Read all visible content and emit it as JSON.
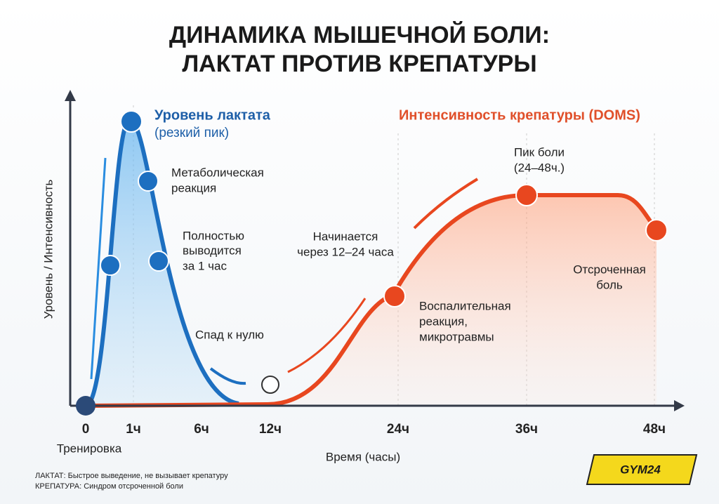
{
  "header": {
    "title": [
      "ДИНАМИКА МЫШЕЧНОЙ БОЛИ:",
      "ЛАКТАТ ПРОТИВ КРЕПАТУРЫ"
    ]
  },
  "axes": {
    "y_label": "Уровень / Интенсивность",
    "x_label": "Время (часы)",
    "x_ticks": [
      "0",
      "1ч",
      "6ч",
      "12ч",
      "24ч",
      "36ч",
      "48ч"
    ],
    "origin_note": "Тренировка"
  },
  "lactate": {
    "title": "Уровень лактата",
    "subtitle": "(резкий пик)",
    "metabolic": [
      "Метаболическая",
      "реакция"
    ],
    "cleared": [
      "Полностью",
      "выводится",
      "за 1 час"
    ],
    "drop": "Спад к нулю"
  },
  "doms": {
    "title": "Интенсивность крепатуры (DOMS)",
    "peak": [
      "Пик боли",
      "(24–48ч.)"
    ],
    "starts": [
      "Начинается",
      "через 12–24 часа"
    ],
    "inflammation": [
      "Воспалительная",
      "реакция,",
      "микротравмы"
    ],
    "delayed": [
      "Отсроченная",
      "боль"
    ]
  },
  "footnotes": [
    "ЛАКТАТ: Быстрое выведение, не вызывает крепатуру",
    "КРЕПАТУРА: Синдром отсроченной боли"
  ],
  "logo": "GYM24"
}
